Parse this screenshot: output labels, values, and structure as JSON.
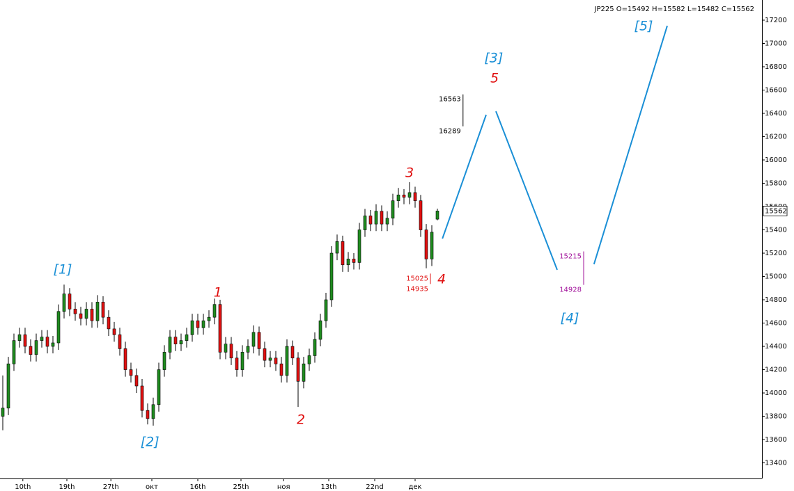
{
  "chart_data": {
    "type": "candlestick",
    "title": "JP225 O=15492 H=15582 L=15482 C=15562",
    "up_color": "#1f8c1f",
    "down_color": "#e01010",
    "wick_color": "#000000",
    "open": [
      13800,
      13870,
      14250,
      14450,
      14500,
      14400,
      14330,
      14450,
      14480,
      14400,
      14430,
      14700,
      14850,
      14720,
      14680,
      14640,
      14720,
      14620,
      14780,
      14650,
      14550,
      14500,
      14380,
      14200,
      14150,
      14060,
      13850,
      13780,
      13900,
      14200,
      14350,
      14480,
      14420,
      14450,
      14500,
      14620,
      14560,
      14620,
      14650,
      14760,
      14350,
      14420,
      14300,
      14200,
      14350,
      14400,
      14520,
      14380,
      14280,
      14300,
      14250,
      14150,
      14400,
      14300,
      14100,
      14250,
      14320,
      14460,
      14620,
      14800,
      15200,
      15300,
      15100,
      15150,
      15120,
      15400,
      15520,
      15450,
      15560,
      15450,
      15500,
      15650,
      15700,
      15680,
      15720,
      15650,
      15400,
      15150,
      15492
    ],
    "high": [
      14150,
      14310,
      14510,
      14560,
      14560,
      14460,
      14510,
      14540,
      14540,
      14490,
      14760,
      14930,
      14900,
      14780,
      14740,
      14780,
      14780,
      14840,
      14830,
      14710,
      14610,
      14560,
      14440,
      14260,
      14210,
      14120,
      13910,
      13960,
      14260,
      14410,
      14540,
      14540,
      14510,
      14560,
      14680,
      14680,
      14680,
      14710,
      14810,
      14800,
      14480,
      14480,
      14360,
      14410,
      14460,
      14580,
      14570,
      14440,
      14360,
      14360,
      14310,
      14460,
      14450,
      14350,
      14310,
      14380,
      14520,
      14680,
      14860,
      15260,
      15360,
      15350,
      15210,
      15200,
      15460,
      15580,
      15570,
      15620,
      15610,
      15560,
      15710,
      15760,
      15750,
      15810,
      15770,
      15700,
      15450,
      15440,
      15582
    ],
    "low": [
      13680,
      13810,
      14190,
      14390,
      14340,
      14270,
      14270,
      14390,
      14340,
      14340,
      14370,
      14640,
      14660,
      14620,
      14580,
      14580,
      14560,
      14560,
      14590,
      14490,
      14440,
      14320,
      14140,
      14090,
      14000,
      13790,
      13730,
      13720,
      13840,
      14140,
      14290,
      14360,
      14360,
      14390,
      14440,
      14500,
      14500,
      14560,
      14590,
      14290,
      14290,
      14240,
      14140,
      14140,
      14290,
      14340,
      14320,
      14220,
      14220,
      14190,
      14090,
      14090,
      14240,
      13880,
      14040,
      14190,
      14260,
      14400,
      14560,
      14740,
      15140,
      15040,
      15040,
      15060,
      15060,
      15340,
      15390,
      15390,
      15390,
      15390,
      15440,
      15590,
      15620,
      15620,
      15590,
      15340,
      15070,
      15090,
      15482
    ],
    "close": [
      13870,
      14250,
      14450,
      14500,
      14400,
      14330,
      14450,
      14480,
      14400,
      14430,
      14700,
      14850,
      14720,
      14680,
      14640,
      14720,
      14620,
      14780,
      14650,
      14550,
      14500,
      14380,
      14200,
      14150,
      14060,
      13850,
      13780,
      13900,
      14200,
      14350,
      14480,
      14420,
      14450,
      14500,
      14620,
      14560,
      14620,
      14650,
      14760,
      14350,
      14420,
      14300,
      14200,
      14350,
      14400,
      14520,
      14380,
      14280,
      14300,
      14250,
      14150,
      14400,
      14300,
      14100,
      14250,
      14320,
      14460,
      14620,
      14800,
      15200,
      15300,
      15100,
      15150,
      15120,
      15400,
      15520,
      15450,
      15560,
      15450,
      15500,
      15650,
      15700,
      15680,
      15720,
      15650,
      15400,
      15150,
      15380,
      15562
    ],
    "xlim": [
      -0.5,
      136.25
    ],
    "ylim": [
      13266,
      17373
    ],
    "yticks": [
      13400,
      13600,
      13800,
      14000,
      14200,
      14400,
      14600,
      14800,
      15000,
      15200,
      15400,
      15600,
      15800,
      16000,
      16200,
      16400,
      16600,
      16800,
      17000,
      17200
    ],
    "xticks": [
      {
        "value": 3.6,
        "label": "10th"
      },
      {
        "value": 11.5,
        "label": "19th"
      },
      {
        "value": 19.4,
        "label": "27th"
      },
      {
        "value": 26.75,
        "label": "окт"
      },
      {
        "value": 35,
        "label": "16th"
      },
      {
        "value": 42.75,
        "label": "25th"
      },
      {
        "value": 50.4,
        "label": "ноя"
      },
      {
        "value": 58.5,
        "label": "13th"
      },
      {
        "value": 66.75,
        "label": "22nd"
      },
      {
        "value": 74,
        "label": "дек"
      }
    ],
    "projection": {
      "color": "#1a8fd6",
      "lines": [
        {
          "x": [
            78.9,
            86.75
          ],
          "y": [
            15325,
            16388
          ]
        },
        {
          "x": [
            88.5,
            99.5
          ],
          "y": [
            16418,
            15057
          ]
        },
        {
          "x": [
            106.1,
            119.25
          ],
          "y": [
            15105,
            17152
          ]
        }
      ]
    },
    "levels": [
      {
        "x": 82.6,
        "values": [
          16563,
          16289
        ],
        "color": "#000000"
      },
      {
        "x": 76.75,
        "values": [
          15025,
          14935
        ],
        "color": "#e01010"
      },
      {
        "x": 104.25,
        "values": [
          15215,
          14928
        ],
        "color": "#a0109a"
      }
    ],
    "annotations": [
      {
        "text": "[1]",
        "x": 10.75,
        "y": 15057,
        "color": "#1a8fd6"
      },
      {
        "text": "[2]",
        "x": 26.4,
        "y": 13576,
        "color": "#1a8fd6"
      },
      {
        "text": "1",
        "x": 38.6,
        "y": 14860,
        "color": "#e01010"
      },
      {
        "text": "2",
        "x": 53.5,
        "y": 13767,
        "color": "#e01010"
      },
      {
        "text": "3",
        "x": 73,
        "y": 15887,
        "color": "#e01010"
      },
      {
        "text": "4",
        "x": 78.75,
        "y": 14973,
        "color": "#e01010"
      },
      {
        "text": "[3]",
        "x": 88.1,
        "y": 16872,
        "color": "#1a8fd6"
      },
      {
        "text": "5",
        "x": 88.25,
        "y": 16698,
        "color": "#e01010"
      },
      {
        "text": "[4]",
        "x": 101.75,
        "y": 14639,
        "color": "#1a8fd6"
      },
      {
        "text": "[5]",
        "x": 115,
        "y": 17146,
        "color": "#1a8fd6"
      }
    ]
  }
}
